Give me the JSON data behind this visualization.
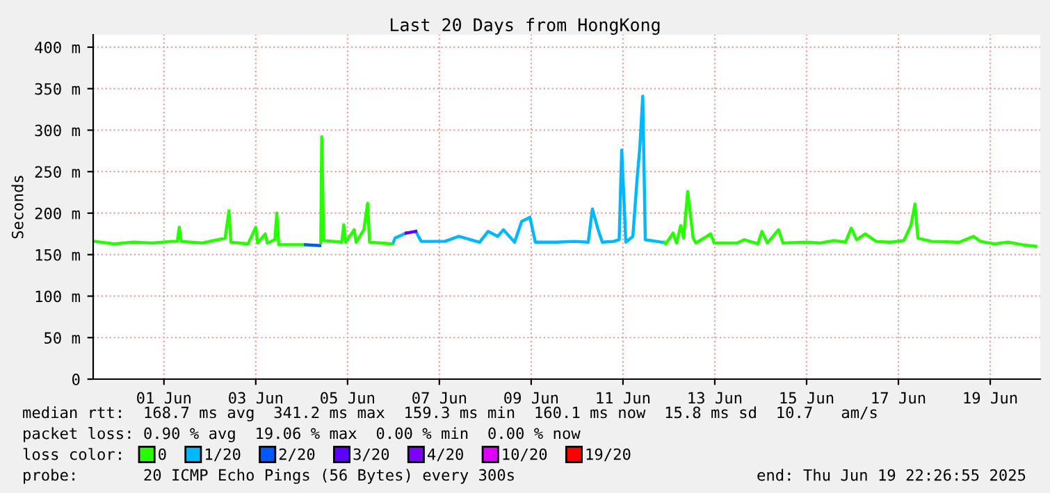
{
  "chart_data": {
    "type": "line",
    "title": "Last 20 Days from HongKong",
    "ylabel": "Seconds",
    "legend_title": "loss color:",
    "legend": "bottom",
    "grid": true,
    "marker": "none",
    "line_style": "solid",
    "xlim": [
      "2025-05-30T11:00",
      "2025-06-20T02:10"
    ],
    "xticks": [
      {
        "value": "2025-06-01",
        "label": "01 Jun"
      },
      {
        "value": "2025-06-03",
        "label": "03 Jun"
      },
      {
        "value": "2025-06-05",
        "label": "05 Jun"
      },
      {
        "value": "2025-06-07",
        "label": "07 Jun"
      },
      {
        "value": "2025-06-09",
        "label": "09 Jun"
      },
      {
        "value": "2025-06-11",
        "label": "11 Jun"
      },
      {
        "value": "2025-06-13",
        "label": "13 Jun"
      },
      {
        "value": "2025-06-15",
        "label": "15 Jun"
      },
      {
        "value": "2025-06-17",
        "label": "17 Jun"
      },
      {
        "value": "2025-06-19",
        "label": "19 Jun"
      }
    ],
    "ylim": [
      0,
      415
    ],
    "yticks": [
      0,
      {
        "value": 50,
        "label": "50 m"
      },
      {
        "value": 100,
        "label": "100 m"
      },
      {
        "value": 150,
        "label": "150 m"
      },
      {
        "value": 200,
        "label": "200 m"
      },
      {
        "value": 250,
        "label": "250 m"
      },
      {
        "value": 300,
        "label": "300 m"
      },
      {
        "value": 350,
        "label": "350 m"
      },
      {
        "value": 400,
        "label": "400 m"
      }
    ],
    "series": [
      {
        "name": "0",
        "color": "#26ff00",
        "x": [
          "2025-05-30T12:00",
          "2025-05-30T22:00",
          "2025-05-31T08:00",
          "2025-05-31T18:00",
          "2025-06-01T04:00",
          "2025-06-01T07:00",
          "2025-06-01T08:00",
          "2025-06-01T09:00",
          "2025-06-01T20:00",
          "2025-06-02T08:00",
          "2025-06-02T10:00",
          "2025-06-02T11:00",
          "2025-06-02T20:00",
          "2025-06-03T00:00",
          "2025-06-03T01:00",
          "2025-06-03T05:00",
          "2025-06-03T06:00",
          "2025-06-03T10:00",
          "2025-06-03T11:00",
          "2025-06-03T12:00",
          "2025-06-03T22:00",
          "2025-06-04T01:30",
          "2025-06-04T06:00",
          "2025-06-04T10:00",
          "2025-06-04T10:30",
          "2025-06-04T11:30",
          "2025-06-04T21:00",
          "2025-06-04T22:00",
          "2025-06-04T23:00",
          "2025-06-05T03:30",
          "2025-06-05T04:30",
          "2025-06-05T08:30",
          "2025-06-05T10:30",
          "2025-06-05T11:30",
          "2025-06-05T23:30",
          "2025-06-08T00:00",
          "2025-06-11T21:30",
          "2025-06-11T22:20",
          "2025-06-12T02:10",
          "2025-06-12T04:00",
          "2025-06-12T06:10",
          "2025-06-12T07:40",
          "2025-06-12T09:50",
          "2025-06-12T11:10",
          "2025-06-12T12:40",
          "2025-06-12T14:10",
          "2025-06-12T21:50",
          "2025-06-12T23:40",
          "2025-06-13T11:40",
          "2025-06-13T15:20",
          "2025-06-13T22:30",
          "2025-06-14T00:40",
          "2025-06-14T03:30",
          "2025-06-14T09:20",
          "2025-06-14T11:40",
          "2025-06-14T23:50",
          "2025-06-15T07:10",
          "2025-06-15T14:20",
          "2025-06-15T20:20",
          "2025-06-15T23:20",
          "2025-06-16T02:10",
          "2025-06-16T06:40",
          "2025-06-16T12:20",
          "2025-06-16T19:40",
          "2025-06-17T02:50",
          "2025-06-17T06:30",
          "2025-06-17T08:40",
          "2025-06-17T10:10",
          "2025-06-17T17:20",
          "2025-06-18T07:50",
          "2025-06-18T15:20",
          "2025-06-18T18:50",
          "2025-06-19T02:10",
          "2025-06-19T09:20",
          "2025-06-19T16:40",
          "2025-06-19T23:50"
        ],
        "values": [
          166,
          163,
          165,
          164,
          166,
          166,
          183,
          166,
          164,
          170,
          203,
          165,
          163,
          183,
          164,
          175,
          164,
          168,
          200,
          162,
          162,
          162,
          null,
          165,
          292,
          167,
          165,
          186,
          165,
          180,
          165,
          180,
          212,
          165,
          163,
          null,
          165,
          163,
          176,
          164,
          185,
          170,
          226,
          200,
          170,
          164,
          175,
          164,
          164,
          168,
          163,
          178,
          164,
          180,
          164,
          165,
          164,
          167,
          165,
          182,
          168,
          175,
          166,
          165,
          167,
          185,
          211,
          170,
          166,
          165,
          172,
          166,
          163,
          165,
          162,
          160
        ]
      },
      {
        "name": "1/20",
        "color": "#00b8ff",
        "x": [
          "2025-06-06T00:00",
          "2025-06-06T00:50",
          "2025-06-06T06:40",
          "2025-06-06T09:00",
          "2025-06-06T11:40",
          "2025-06-06T14:30",
          "2025-06-07T02:50",
          "2025-06-07T10:10",
          "2025-06-07T21:00",
          "2025-06-08T01:30",
          "2025-06-08T06:30",
          "2025-06-08T09:30",
          "2025-06-08T15:20",
          "2025-06-08T19:00",
          "2025-06-08T23:20",
          "2025-06-09T02:10",
          "2025-06-09T13:10",
          "2025-06-09T22:30",
          "2025-06-10T05:50",
          "2025-06-10T08:00",
          "2025-06-10T11:00",
          "2025-06-10T13:10",
          "2025-06-10T19:00",
          "2025-06-10T22:00",
          "2025-06-10T23:20",
          "2025-06-11T01:30",
          "2025-06-11T05:10",
          "2025-06-11T07:20",
          "2025-06-11T08:50",
          "2025-06-11T10:20",
          "2025-06-11T11:40",
          "2025-06-11T17:30",
          "2025-06-11T20:20"
        ],
        "values": [
          165,
          170,
          176,
          null,
          178,
          166,
          166,
          172,
          165,
          178,
          172,
          180,
          165,
          190,
          195,
          165,
          165,
          166,
          165,
          205,
          180,
          165,
          166,
          168,
          276,
          165,
          172,
          240,
          280,
          341,
          168,
          166,
          165
        ]
      },
      {
        "name": "2/20",
        "color": "#0059ff",
        "x": [
          "2025-06-04T02:00",
          "2025-06-04T09:30"
        ],
        "values": [
          162,
          161
        ]
      },
      {
        "name": "3/20",
        "color": "#5e00ff",
        "x": [
          "2025-06-06T06:40",
          "2025-06-06T11:40"
        ],
        "values": [
          176,
          178
        ]
      },
      {
        "name": "4/20",
        "color": "#7e00ff"
      },
      {
        "name": "10/20",
        "color": "#dd00ff"
      },
      {
        "name": "19/20",
        "color": "#ff0000"
      }
    ],
    "annotations": [
      "median rtt:  168.7 ms avg  341.2 ms max  159.3 ms min  160.1 ms now  15.8 ms sd  10.7   am/s",
      "packet loss: 0.90 % avg  19.06 % max  0.00 % min  0.00 % now",
      "probe:       20 ICMP Echo Pings (56 Bytes) every 300s",
      "end: Thu Jun 19 22:26:55 2025"
    ]
  }
}
